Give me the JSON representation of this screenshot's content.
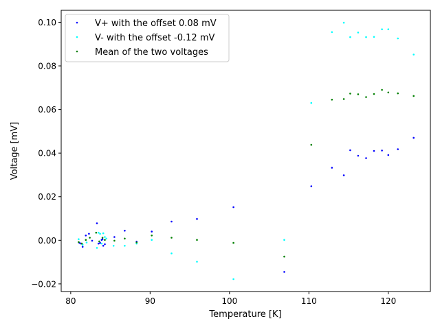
{
  "chart_data": {
    "type": "scatter",
    "xlabel": "Temperature [K]",
    "ylabel": "Voltage [mV]",
    "xlim": [
      78.8,
      125.3
    ],
    "ylim": [
      -0.0235,
      0.1055
    ],
    "xticks": [
      80,
      90,
      100,
      110,
      120
    ],
    "yticks": [
      -0.02,
      0.0,
      0.02,
      0.04,
      0.06,
      0.08,
      0.1
    ],
    "xtick_labels": [
      "80",
      "90",
      "100",
      "110",
      "120"
    ],
    "ytick_labels": [
      "−0.02",
      "0.00",
      "0.02",
      "0.04",
      "0.06",
      "0.08",
      "0.10"
    ],
    "grid": false,
    "legend_position": "top-left",
    "series": [
      {
        "name": "V+ with the offset 0.08 mV",
        "color": "#0000ff",
        "x": [
          81.1,
          81.3,
          81.5,
          81.9,
          82.3,
          82.7,
          83.3,
          83.5,
          83.7,
          84.0,
          84.3,
          84.1,
          83.9,
          85.5,
          86.8,
          88.3,
          90.2,
          92.7,
          95.9,
          100.5,
          106.9,
          110.3,
          112.9,
          114.4,
          115.2,
          116.2,
          117.2,
          118.2,
          119.2,
          120.0,
          121.2,
          123.2
        ],
        "y": [
          -0.0012,
          -0.0015,
          -0.003,
          0.0022,
          0.003,
          -0.0002,
          0.0078,
          -0.0015,
          -0.0012,
          0.0005,
          -0.0018,
          -0.0025,
          0.0002,
          0.0015,
          0.0044,
          -0.0006,
          0.004,
          0.0086,
          0.0098,
          0.0152,
          -0.0145,
          0.0248,
          0.0333,
          0.0298,
          0.0413,
          0.0388,
          0.0377,
          0.041,
          0.0412,
          0.0391,
          0.0418,
          0.047
        ]
      },
      {
        "name": "V- with the offset -0.12 mV",
        "color": "#00ffff",
        "x": [
          81.0,
          81.5,
          82.0,
          83.3,
          83.5,
          83.7,
          83.9,
          84.1,
          84.3,
          84.5,
          85.4,
          86.8,
          88.3,
          90.2,
          92.7,
          95.9,
          100.5,
          106.9,
          110.3,
          112.9,
          114.4,
          115.2,
          116.2,
          117.2,
          118.2,
          119.2,
          120.0,
          121.2,
          123.2
        ],
        "y": [
          0.0005,
          -0.002,
          -0.001,
          -0.0035,
          0.0035,
          0.003,
          -0.0015,
          0.0032,
          0.0015,
          0.0008,
          -0.0025,
          -0.0025,
          -0.0015,
          0.0002,
          -0.006,
          -0.0098,
          -0.0178,
          0.0002,
          0.063,
          0.0955,
          0.0998,
          0.0932,
          0.0953,
          0.0932,
          0.0933,
          0.0968,
          0.0968,
          0.0926,
          0.0852
        ]
      },
      {
        "name": "Mean of the two voltages",
        "color": "#008000",
        "x": [
          81.0,
          81.4,
          81.9,
          82.4,
          83.2,
          83.6,
          84.0,
          84.3,
          85.5,
          86.8,
          88.3,
          90.2,
          92.7,
          95.9,
          100.5,
          106.9,
          110.3,
          112.9,
          114.4,
          115.2,
          116.2,
          117.2,
          118.2,
          119.2,
          120.0,
          121.2,
          123.2
        ],
        "y": [
          -0.0008,
          -0.0015,
          0.0002,
          0.0012,
          0.0035,
          -0.0005,
          0.0012,
          0.0002,
          -0.0002,
          0.0008,
          -0.001,
          0.0022,
          0.0012,
          0.0002,
          -0.0012,
          -0.0075,
          0.0438,
          0.0645,
          0.0648,
          0.0673,
          0.067,
          0.0657,
          0.0671,
          0.069,
          0.0678,
          0.0674,
          0.0662
        ]
      }
    ]
  }
}
